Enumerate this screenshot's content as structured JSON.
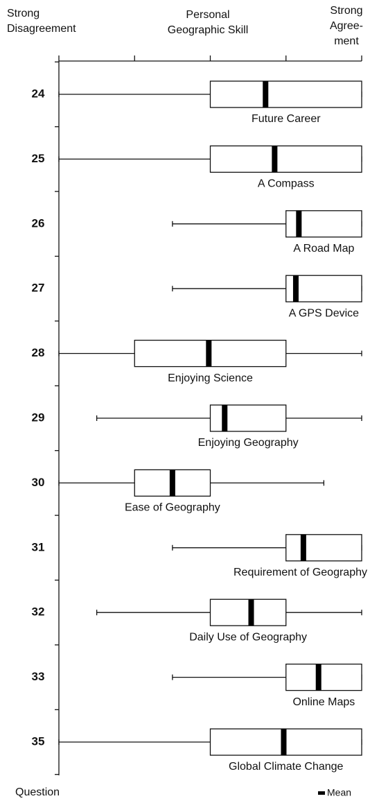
{
  "chart_data": {
    "type": "box",
    "header": {
      "left": [
        "Strong",
        "Disagreement"
      ],
      "center": [
        "Personal",
        "Geographic Skill"
      ],
      "right": [
        "Strong",
        "Agree-",
        "ment"
      ]
    },
    "y_label": "Question",
    "legend_mean": "Mean",
    "xlim": [
      1,
      5
    ],
    "xticks": [
      1,
      2,
      3,
      4,
      5
    ],
    "categories": [
      "24",
      "25",
      "26",
      "27",
      "28",
      "29",
      "30",
      "31",
      "32",
      "33",
      "35"
    ],
    "labels": [
      "Future Career",
      "A Compass",
      "A Road Map",
      "A GPS Device",
      "Enjoying Science",
      "Enjoying Geography",
      "Ease of Geography",
      "Requirement of Geography",
      "Daily Use of Geography",
      "Online Maps",
      "Global Climate Change"
    ],
    "min": [
      1,
      1,
      2.5,
      2.5,
      1,
      1.5,
      1,
      2.5,
      1.5,
      2.5,
      1
    ],
    "q1": [
      3,
      3,
      4,
      4,
      2,
      3,
      2,
      4,
      3,
      4,
      3
    ],
    "q3": [
      5,
      5,
      5,
      5,
      4,
      4,
      3,
      5,
      4,
      5,
      5
    ],
    "max": [
      5,
      5,
      5,
      5,
      5,
      5,
      4.5,
      5,
      5,
      5,
      5
    ],
    "mean": [
      3.73,
      3.85,
      4.17,
      4.13,
      2.98,
      3.19,
      2.5,
      4.23,
      3.54,
      4.43,
      3.97
    ],
    "box_color": "#ffffff",
    "mean_color": "#000000"
  }
}
